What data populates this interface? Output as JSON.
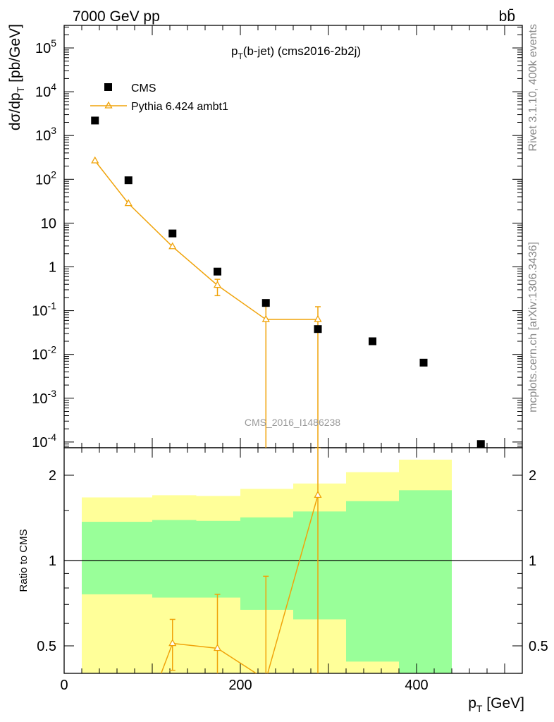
{
  "header": {
    "beam_label": "7000 GeV pp",
    "process_label": "bb̄",
    "title": "p_T(b-jet) (cms2016-2b2j)",
    "watermark": "CMS_2016_I1486238",
    "side_label_rivet": "Rivet 3.1.10,  400k events",
    "side_label_mcplots": "mcplots.cern.ch [arXiv:1306.3436]"
  },
  "axes": {
    "main_ylabel": "dσ/dp_T [pb/GeV]",
    "ratio_ylabel": "Ratio to CMS",
    "xlabel": "p_T [GeV]",
    "x_ticks": [
      "0",
      "200",
      "400"
    ],
    "main_y_ticks": [
      "10^5",
      "10^4",
      "10^3",
      "10^2",
      "10",
      "1",
      "10^-1",
      "10^-2",
      "10^-3",
      "10^-4"
    ],
    "ratio_y_ticks": [
      "0.5",
      "1",
      "2"
    ]
  },
  "legend": {
    "data_label": "CMS",
    "mc_label": "Pythia 6.424 ambt1"
  },
  "colors": {
    "mc": "#f0a30a",
    "band_inner": "#99ff99",
    "band_outer": "#ffff99",
    "data": "#000000"
  },
  "chart_data": {
    "type": "scatter",
    "x_range": [
      0,
      520
    ],
    "y_scale": "log",
    "y_range": [
      0.0001,
      300000
    ],
    "ratio_range": [
      0.35,
      2.5
    ],
    "series": [
      {
        "name": "CMS",
        "x": [
          35,
          73,
          123,
          174,
          229,
          288,
          350,
          408,
          473
        ],
        "y": [
          2200,
          95,
          5.8,
          0.78,
          0.15,
          0.038,
          0.02,
          0.0065,
          9e-05
        ]
      },
      {
        "name": "Pythia 6.424 ambt1",
        "x": [
          35,
          73,
          123,
          174,
          229,
          288
        ],
        "y": [
          265,
          28,
          2.9,
          0.38,
          0.063,
          0.063
        ],
        "y_err_low": [
          0,
          0,
          0,
          0.16,
          0.063,
          0.063
        ],
        "y_err_high": [
          0,
          0,
          0,
          0.14,
          0.063,
          0.06
        ]
      }
    ],
    "ratio": {
      "bands": [
        {
          "x_low": 20,
          "x_high": 100,
          "inner": [
            0.76,
            1.37
          ],
          "outer": [
            0.38,
            1.67
          ]
        },
        {
          "x_low": 100,
          "x_high": 150,
          "inner": [
            0.74,
            1.39
          ],
          "outer": [
            0.35,
            1.7
          ]
        },
        {
          "x_low": 150,
          "x_high": 200,
          "inner": [
            0.74,
            1.38
          ],
          "outer": [
            0.35,
            1.69
          ]
        },
        {
          "x_low": 200,
          "x_high": 260,
          "inner": [
            0.67,
            1.42
          ],
          "outer": [
            0.35,
            1.79
          ]
        },
        {
          "x_low": 260,
          "x_high": 320,
          "inner": [
            0.62,
            1.49
          ],
          "outer": [
            0.35,
            1.87
          ]
        },
        {
          "x_low": 320,
          "x_high": 380,
          "inner": [
            0.44,
            1.62
          ],
          "outer": [
            0.35,
            2.05
          ]
        },
        {
          "x_low": 380,
          "x_high": 440,
          "inner": [
            0.35,
            1.77
          ],
          "outer": [
            0.35,
            2.27
          ]
        }
      ],
      "mc_points": {
        "x": [
          123,
          174,
          229,
          288
        ],
        "y": [
          0.51,
          0.49,
          0.38,
          1.7
        ],
        "y_err_low": [
          0.1,
          0.14,
          0.38,
          1.7
        ],
        "y_err_high": [
          0.11,
          0.27,
          0.5,
          0.8
        ]
      },
      "mc_line_start": {
        "x": 100,
        "y": 0.33
      }
    }
  }
}
